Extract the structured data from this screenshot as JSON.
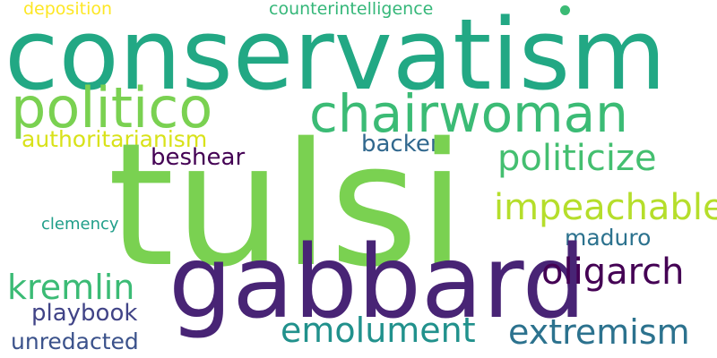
{
  "words": {
    "tulsi": {
      "text": "tulsi",
      "color": "#7ad151"
    },
    "conservatism": {
      "text": "conservatism",
      "color": "#22a884"
    },
    "gabbard": {
      "text": "gabbard",
      "color": "#482475"
    },
    "politico": {
      "text": "politico",
      "color": "#7ad151"
    },
    "chairwoman": {
      "text": "chairwoman",
      "color": "#3bbb75"
    },
    "politicize": {
      "text": "politicize",
      "color": "#44bf70"
    },
    "impeachable": {
      "text": "impeachable",
      "color": "#b5de2b"
    },
    "oligarch": {
      "text": "oligarch",
      "color": "#440154"
    },
    "kremlin": {
      "text": "kremlin",
      "color": "#3bbb75"
    },
    "emolument": {
      "text": "emolument",
      "color": "#21918c"
    },
    "extremism": {
      "text": "extremism",
      "color": "#2c728e"
    },
    "authoritarianism": {
      "text": "authoritarianism",
      "color": "#d8e219"
    },
    "backer": {
      "text": "backer",
      "color": "#31688e"
    },
    "beshear": {
      "text": "beshear",
      "color": "#440154"
    },
    "maduro": {
      "text": "maduro",
      "color": "#2c728e"
    },
    "playbook": {
      "text": "playbook",
      "color": "#414487"
    },
    "unredacted": {
      "text": "unredacted",
      "color": "#3b528b"
    },
    "clemency": {
      "text": "clemency",
      "color": "#1f9e89"
    },
    "deposition": {
      "text": "deposition",
      "color": "#fde725"
    },
    "counterintelligence": {
      "text": "counterintelligence",
      "color": "#35b779"
    }
  },
  "dot": {
    "color": "#3bbb75"
  }
}
